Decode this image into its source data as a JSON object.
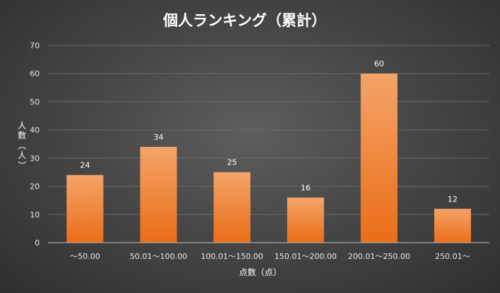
{
  "chart_data": {
    "type": "bar",
    "title": "個人ランキング（累計）",
    "xlabel": "点数（点）",
    "ylabel": "人数（人）",
    "categories": [
      "〜50.00",
      "50.01〜100.00",
      "100.01〜150.00",
      "150.01〜200.00",
      "200.01〜250.00",
      "250.01〜"
    ],
    "values": [
      24,
      34,
      25,
      16,
      60,
      12
    ],
    "ylim": [
      0,
      70
    ],
    "yticks": [
      0,
      10,
      20,
      30,
      40,
      50,
      60,
      70
    ],
    "grid": true,
    "legend": "none",
    "colors": {
      "bar_top": "#f4a468",
      "bar_bottom": "#ea6d17",
      "background": "#474747",
      "text": "#ffffff"
    }
  }
}
